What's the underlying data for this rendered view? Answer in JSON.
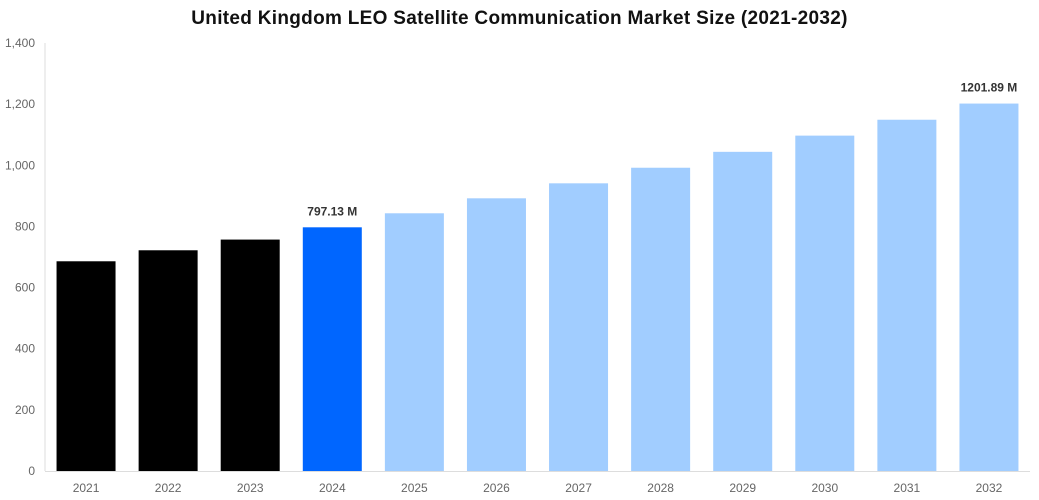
{
  "chart_data": {
    "type": "bar",
    "title": "United Kingdom LEO Satellite Communication Market Size (2021-2032)",
    "xlabel": "",
    "ylabel": "",
    "categories": [
      "2021",
      "2022",
      "2023",
      "2024",
      "2025",
      "2026",
      "2027",
      "2028",
      "2029",
      "2030",
      "2031",
      "2032"
    ],
    "values": [
      686,
      722,
      757,
      797.13,
      843,
      892,
      941,
      992,
      1044,
      1097,
      1149,
      1201.89
    ],
    "bar_colors": [
      "#000000",
      "#000000",
      "#000000",
      "#0066ff",
      "#a1cdff",
      "#a1cdff",
      "#a1cdff",
      "#a1cdff",
      "#a1cdff",
      "#a1cdff",
      "#a1cdff",
      "#a1cdff"
    ],
    "data_labels": {
      "3": "797.13 M",
      "11": "1201.89 M"
    },
    "ylim": [
      0,
      1400
    ],
    "yticks": [
      "0",
      "200",
      "400",
      "600",
      "800",
      "1,000",
      "1,200",
      "1,400"
    ],
    "grid": false,
    "legend": "none"
  }
}
